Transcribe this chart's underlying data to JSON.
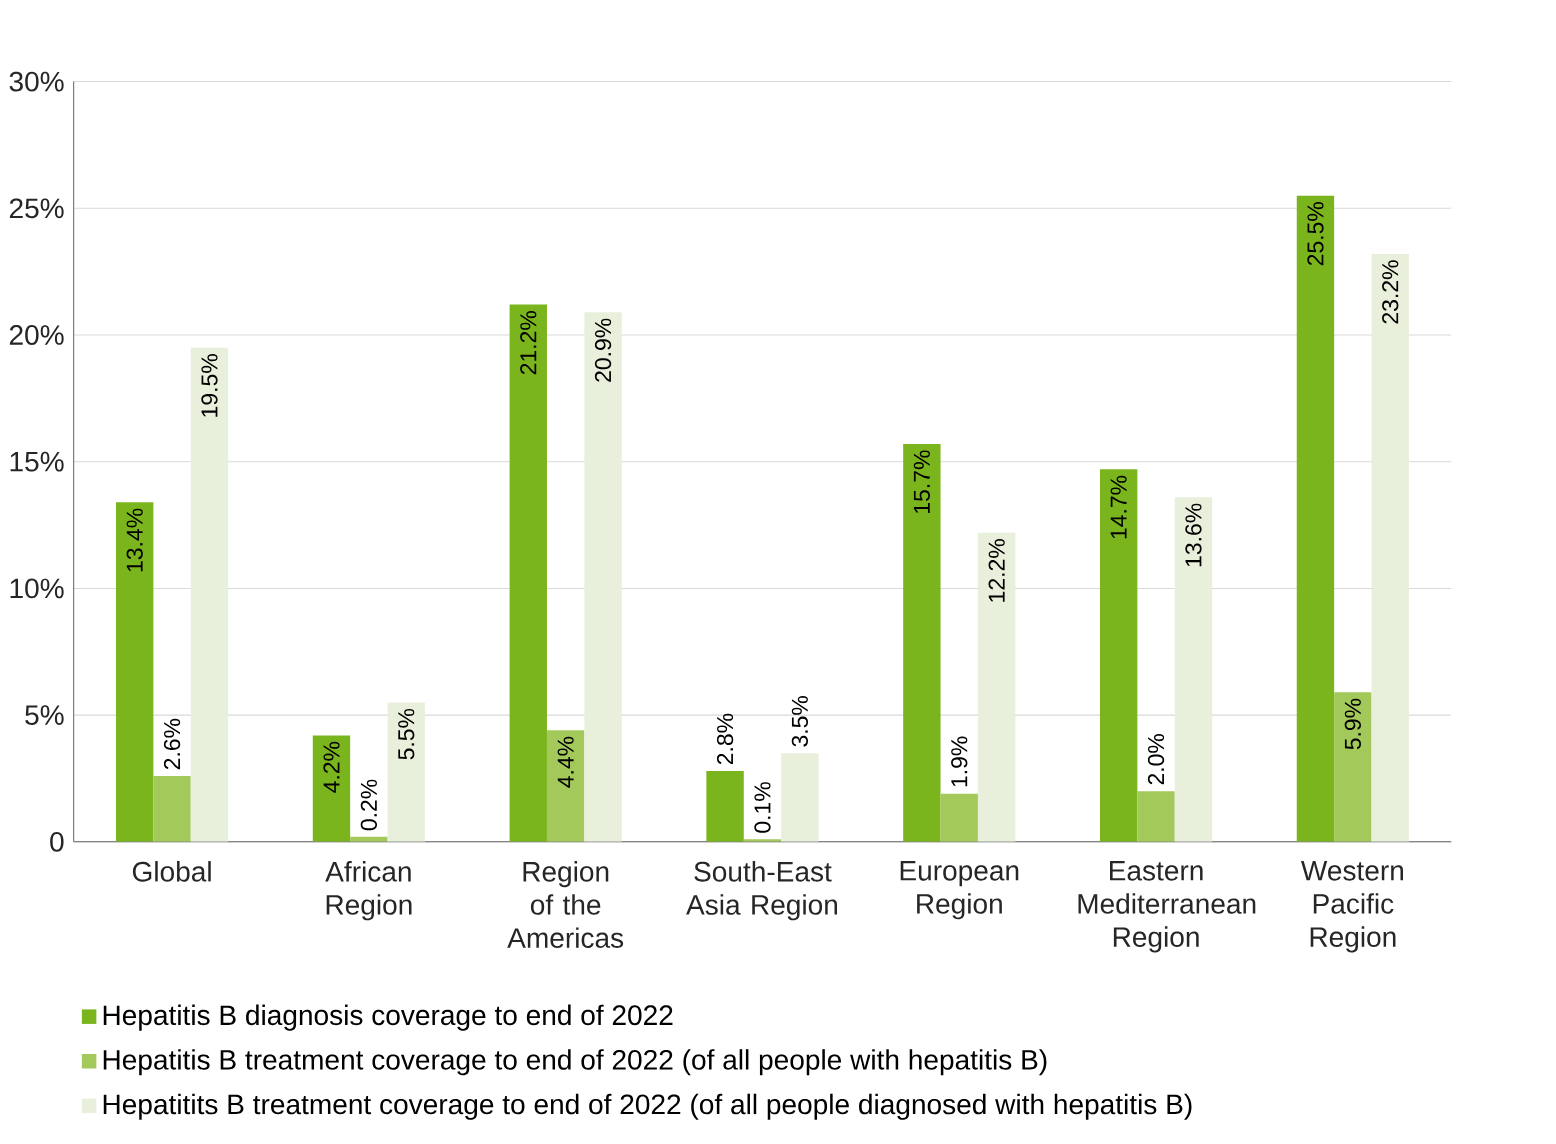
{
  "chart_data": {
    "type": "bar",
    "categories": [
      "Global",
      "African Region",
      "Region of the Americas",
      "South-East Asia Region",
      "European Region",
      "Eastern Mediterranean Region",
      "Western Pacific Region"
    ],
    "series": [
      {
        "name": "Hepatitis B diagnosis coverage to end of 2022",
        "color": "#7ab51d",
        "values": [
          13.4,
          4.2,
          21.2,
          2.8,
          15.7,
          14.7,
          25.5
        ],
        "value_labels": [
          "13.4%",
          "4.2%",
          "21.2%",
          "2.8%",
          "15.7%",
          "14.7%",
          "25.5%"
        ]
      },
      {
        "name": "Hepatitis B treatment coverage to end of 2022 (of all people with hepatitis B)",
        "color": "#a3c95a",
        "values": [
          2.6,
          0.2,
          4.4,
          0.1,
          1.9,
          2.0,
          5.9
        ],
        "value_labels": [
          "2.6%",
          "0.2%",
          "4.4%",
          "0.1%",
          "1.9%",
          "2.0%",
          "5.9%"
        ]
      },
      {
        "name": "Hepatitits B treatment coverage to end of 2022 (of all people diagnosed with hepatitis B)",
        "color": "#e8f0dc",
        "values": [
          19.5,
          5.5,
          20.9,
          3.5,
          12.2,
          13.6,
          23.2
        ],
        "value_labels": [
          "19.5%",
          "5.5%",
          "20.9%",
          "3.5%",
          "12.2%",
          "13.6%",
          "23.2%"
        ]
      }
    ],
    "ylim": [
      0,
      30
    ],
    "yticks": [
      {
        "value": 0,
        "label": "0"
      },
      {
        "value": 5,
        "label": "5%"
      },
      {
        "value": 10,
        "label": "10%"
      },
      {
        "value": 15,
        "label": "15%"
      },
      {
        "value": 20,
        "label": "20%"
      },
      {
        "value": 25,
        "label": "25%"
      },
      {
        "value": 30,
        "label": "30%"
      }
    ],
    "grid": "y",
    "legend": "bottom"
  }
}
